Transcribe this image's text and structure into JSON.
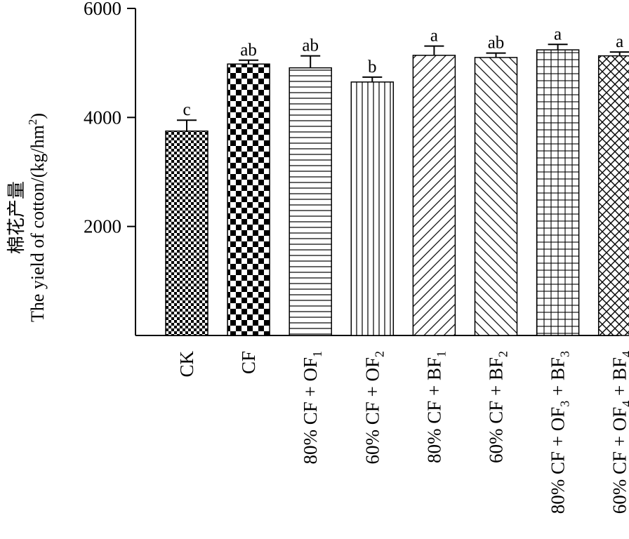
{
  "chart_data": {
    "type": "bar",
    "title": "",
    "ylabel_zh": "棉花产量",
    "ylabel_en": "The yield of cotton/(kg/hm",
    "ylabel_unit_sup": "2",
    "ylabel_close": ")",
    "xlabel": "",
    "ylim": [
      0,
      6000
    ],
    "yticks": [
      2000,
      4000,
      6000
    ],
    "grid": false,
    "categories": [
      "CK",
      "CF",
      "80% CF + OF1",
      "60% CF + OF2",
      "80% CF + BF1",
      "60% CF + BF2",
      "80% CF + OF3 + BF3",
      "60% CF + OF4 + BF4"
    ],
    "category_labels": [
      [
        {
          "t": "CK"
        }
      ],
      [
        {
          "t": "CF"
        }
      ],
      [
        {
          "t": "80% CF + OF"
        },
        {
          "t": "1",
          "sub": true
        }
      ],
      [
        {
          "t": "60% CF + OF"
        },
        {
          "t": "2",
          "sub": true
        }
      ],
      [
        {
          "t": "80% CF + BF"
        },
        {
          "t": "1",
          "sub": true
        }
      ],
      [
        {
          "t": "60% CF + BF"
        },
        {
          "t": "2",
          "sub": true
        }
      ],
      [
        {
          "t": "80% CF + OF"
        },
        {
          "t": "3",
          "sub": true
        },
        {
          "t": " + BF"
        },
        {
          "t": "3",
          "sub": true
        }
      ],
      [
        {
          "t": "60% CF + OF"
        },
        {
          "t": "4",
          "sub": true
        },
        {
          "t": " + BF"
        },
        {
          "t": "4",
          "sub": true
        }
      ]
    ],
    "values": [
      3750,
      4980,
      4910,
      4650,
      5140,
      5100,
      5240,
      5130
    ],
    "errors": [
      200,
      70,
      220,
      90,
      170,
      80,
      100,
      70
    ],
    "significance": [
      "c",
      "ab",
      "ab",
      "b",
      "a",
      "ab",
      "a",
      "a"
    ],
    "patterns": [
      "fine-checker",
      "checker",
      "horizontal-lines",
      "vertical-lines",
      "diagonal-right",
      "diagonal-left",
      "grid",
      "crosshatch-diagonal"
    ]
  }
}
